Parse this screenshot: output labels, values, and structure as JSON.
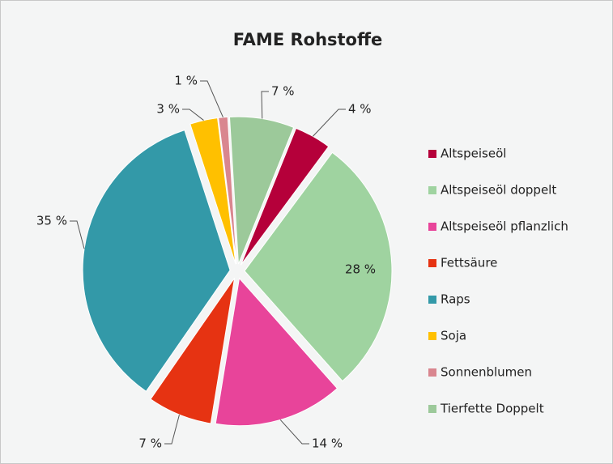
{
  "chart_data": {
    "type": "pie",
    "title": "FAME Rohstoffe",
    "categories": [
      "Altspeiseöl",
      "Altspeiseöl doppelt",
      "Altspeiseöl pflanzlich",
      "Fettsäure",
      "Raps",
      "Soja",
      "Sonnenblumen",
      "Tierfette Doppelt"
    ],
    "values": [
      4,
      28,
      14,
      7,
      35,
      3,
      1,
      7
    ],
    "value_labels": [
      "4 %",
      "28 %",
      "14 %",
      "7 %",
      "35 %",
      "3 %",
      "1 %",
      "7 %"
    ],
    "colors": [
      "#b5003a",
      "#9fd3a0",
      "#e8449a",
      "#e63312",
      "#3399a8",
      "#ffc000",
      "#d9868f",
      "#9cc99a"
    ],
    "legend": "right"
  }
}
